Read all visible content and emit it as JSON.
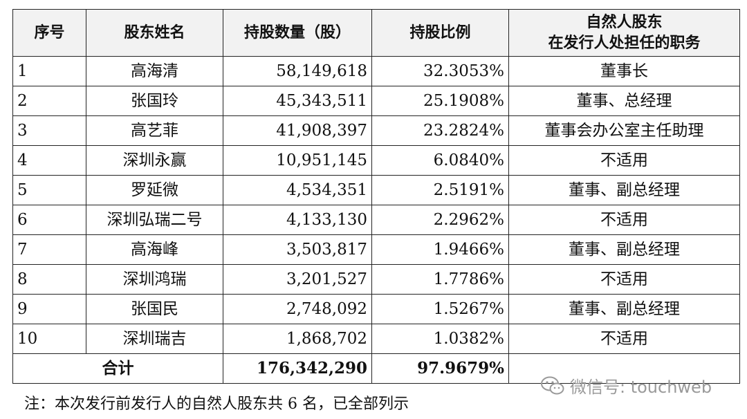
{
  "table": {
    "headers": {
      "index": "序号",
      "name": "股东姓名",
      "shares": "持股数量（股）",
      "ratio": "持股比例",
      "role_line1": "自然人股东",
      "role_line2": "在发行人处担任的职务"
    },
    "rows": [
      {
        "index": "1",
        "name": "高海清",
        "shares": "58,149,618",
        "ratio": "32.3053%",
        "role": "董事长"
      },
      {
        "index": "2",
        "name": "张国玲",
        "shares": "45,343,511",
        "ratio": "25.1908%",
        "role": "董事、总经理"
      },
      {
        "index": "3",
        "name": "高艺菲",
        "shares": "41,908,397",
        "ratio": "23.2824%",
        "role": "董事会办公室主任助理"
      },
      {
        "index": "4",
        "name": "深圳永赢",
        "shares": "10,951,145",
        "ratio": "6.0840%",
        "role": "不适用"
      },
      {
        "index": "5",
        "name": "罗延微",
        "shares": "4,534,351",
        "ratio": "2.5191%",
        "role": "董事、副总经理"
      },
      {
        "index": "6",
        "name": "深圳弘瑞二号",
        "shares": "4,133,130",
        "ratio": "2.2962%",
        "role": "不适用"
      },
      {
        "index": "7",
        "name": "高海峰",
        "shares": "3,503,817",
        "ratio": "1.9466%",
        "role": "董事、副总经理"
      },
      {
        "index": "8",
        "name": "深圳鸿瑞",
        "shares": "3,201,527",
        "ratio": "1.7786%",
        "role": "不适用"
      },
      {
        "index": "9",
        "name": "张国民",
        "shares": "2,748,092",
        "ratio": "1.5267%",
        "role": "董事、副总经理"
      },
      {
        "index": "10",
        "name": "深圳瑞吉",
        "shares": "1,868,702",
        "ratio": "1.0382%",
        "role": "不适用"
      }
    ],
    "total": {
      "label": "合计",
      "shares": "176,342,290",
      "ratio": "97.9679%"
    }
  },
  "note": "注：本次发行前发行人的自然人股东共 6 名，已全部列示",
  "watermark": {
    "text": "微信号: touchweb",
    "icon": "wechat-icon"
  },
  "colors": {
    "header_bg": "#f2f2f2",
    "border": "#222222",
    "watermark": "#9a9a9a"
  }
}
